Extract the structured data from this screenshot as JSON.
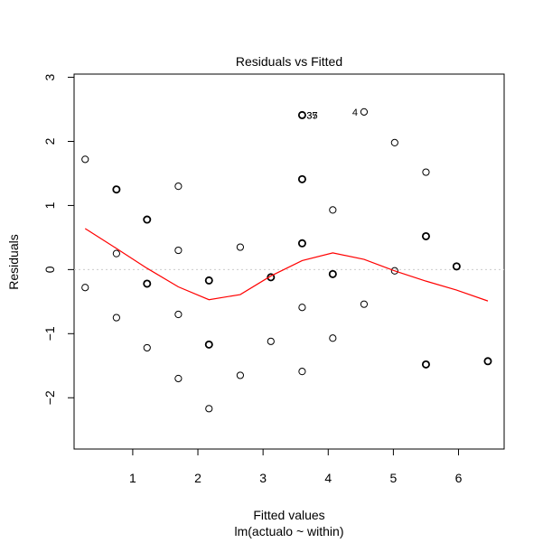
{
  "chart_data": {
    "type": "scatter",
    "title": "Residuals vs Fitted",
    "xlabel": "Fitted values",
    "subtitle": "lm(actualo ~ within)",
    "ylabel": "Residuals",
    "xlim": [
      0.1,
      6.7
    ],
    "ylim": [
      -2.8,
      3.05
    ],
    "xticks": [
      1,
      2,
      3,
      4,
      5,
      6
    ],
    "yticks": [
      -2,
      -1,
      0,
      1,
      2,
      3
    ],
    "reference_line": {
      "y": 0,
      "style": "dotted",
      "color": "#cccccc"
    },
    "points": [
      [
        0.27,
        1.72
      ],
      [
        0.27,
        -0.28
      ],
      [
        0.75,
        1.25
      ],
      [
        0.75,
        0.25
      ],
      [
        0.75,
        -0.75
      ],
      [
        1.22,
        0.78
      ],
      [
        1.22,
        -0.22
      ],
      [
        1.22,
        -1.22
      ],
      [
        1.7,
        1.3
      ],
      [
        1.7,
        0.3
      ],
      [
        1.7,
        -0.7
      ],
      [
        1.7,
        -1.7
      ],
      [
        2.17,
        -0.17
      ],
      [
        2.17,
        -1.17
      ],
      [
        2.17,
        -2.17
      ],
      [
        2.65,
        0.35
      ],
      [
        2.65,
        -1.65
      ],
      [
        3.12,
        -0.12
      ],
      [
        3.12,
        -1.12
      ],
      [
        3.6,
        2.41
      ],
      [
        3.6,
        1.41
      ],
      [
        3.6,
        0.41
      ],
      [
        3.6,
        -0.59
      ],
      [
        3.6,
        -1.59
      ],
      [
        4.07,
        0.93
      ],
      [
        4.07,
        -0.07
      ],
      [
        4.07,
        -1.07
      ],
      [
        4.55,
        2.46
      ],
      [
        4.55,
        -0.54
      ],
      [
        5.02,
        1.98
      ],
      [
        5.02,
        -0.02
      ],
      [
        5.5,
        1.52
      ],
      [
        5.5,
        0.52
      ],
      [
        5.5,
        -1.48
      ],
      [
        5.97,
        0.05
      ],
      [
        6.45,
        -1.43
      ]
    ],
    "heavy_points": [
      [
        0.75,
        1.25
      ],
      [
        1.22,
        0.78
      ],
      [
        1.22,
        -0.22
      ],
      [
        2.17,
        -0.17
      ],
      [
        2.17,
        -1.17
      ],
      [
        3.12,
        -0.12
      ],
      [
        3.6,
        2.41
      ],
      [
        3.6,
        1.41
      ],
      [
        3.6,
        0.41
      ],
      [
        4.07,
        -0.07
      ],
      [
        5.5,
        0.52
      ],
      [
        5.5,
        -1.48
      ],
      [
        5.97,
        0.05
      ],
      [
        6.45,
        -1.43
      ]
    ],
    "annotations": [
      {
        "text": "37",
        "x": 3.6,
        "y": 2.41
      },
      {
        "text": "35",
        "x": 3.6,
        "y": 2.41
      },
      {
        "text": "4",
        "x": 4.55,
        "y": 2.46
      }
    ],
    "smoother": {
      "color": "#ff0000",
      "x": [
        0.27,
        0.75,
        1.22,
        1.7,
        2.17,
        2.65,
        3.12,
        3.6,
        4.07,
        4.55,
        5.02,
        5.5,
        5.97,
        6.45
      ],
      "y": [
        0.64,
        0.33,
        0.02,
        -0.27,
        -0.47,
        -0.39,
        -0.1,
        0.14,
        0.26,
        0.16,
        -0.02,
        -0.18,
        -0.32,
        -0.49
      ]
    }
  }
}
